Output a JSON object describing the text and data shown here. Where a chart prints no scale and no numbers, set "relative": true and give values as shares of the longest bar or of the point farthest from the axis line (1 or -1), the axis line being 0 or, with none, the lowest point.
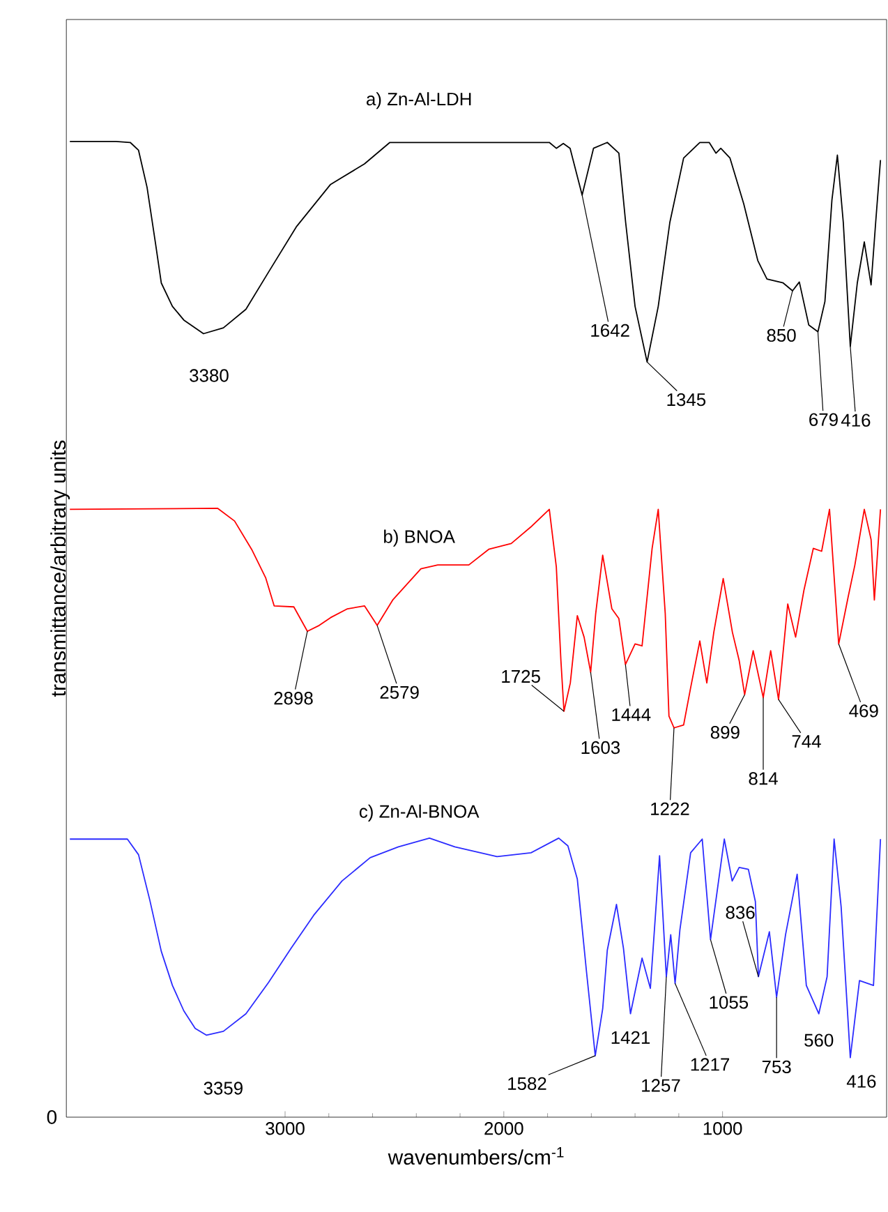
{
  "chart_data": {
    "type": "line",
    "xlabel": "wavenumbers/cm$^{-1}$",
    "ylabel": "transmittance/arbitrary units",
    "relative": true,
    "xlim": [
      4000,
      250
    ],
    "xticks": [
      3000,
      2000,
      1000
    ],
    "series": [
      {
        "name": "a) Zn-Al-LDH",
        "color": "#000000",
        "x": [
          3984,
          3773,
          3708,
          3670,
          3631,
          3592,
          3566,
          3515,
          3463,
          3373,
          3282,
          3179,
          3076,
          2947,
          2792,
          2637,
          2521,
          2018,
          1876,
          1792,
          1760,
          1728,
          1697,
          1642,
          1590,
          1527,
          1474,
          1443,
          1400,
          1345,
          1294,
          1241,
          1178,
          1104,
          1061,
          1030,
          1008,
          966,
          903,
          839,
          797,
          723,
          680,
          649,
          606,
          564,
          532,
          500,
          475,
          448,
          416,
          384,
          352,
          321,
          300,
          278
        ],
        "values": [
          1.0,
          1.0,
          0.999,
          0.991,
          0.953,
          0.895,
          0.855,
          0.831,
          0.817,
          0.803,
          0.809,
          0.828,
          0.866,
          0.913,
          0.956,
          0.977,
          0.999,
          0.999,
          0.999,
          0.999,
          0.993,
          0.998,
          0.993,
          0.945,
          0.993,
          0.999,
          0.988,
          0.917,
          0.831,
          0.774,
          0.831,
          0.917,
          0.983,
          0.999,
          0.999,
          0.988,
          0.993,
          0.983,
          0.936,
          0.878,
          0.859,
          0.855,
          0.847,
          0.856,
          0.812,
          0.805,
          0.836,
          0.94,
          0.986,
          0.917,
          0.79,
          0.855,
          0.897,
          0.853,
          0.917,
          0.981
        ]
      },
      {
        "name": "b) BNOA",
        "color": "#ff0000",
        "x": [
          3984,
          3308,
          3231,
          3153,
          3089,
          3050,
          2960,
          2898,
          2844,
          2792,
          2715,
          2637,
          2579,
          2508,
          2379,
          2302,
          2160,
          2069,
          1966,
          1876,
          1792,
          1760,
          1739,
          1725,
          1696,
          1664,
          1633,
          1603,
          1580,
          1548,
          1506,
          1474,
          1444,
          1400,
          1368,
          1322,
          1294,
          1262,
          1245,
          1222,
          1178,
          1146,
          1104,
          1072,
          1040,
          997,
          955,
          924,
          899,
          860,
          814,
          780,
          744,
          702,
          666,
          628,
          585,
          547,
          511,
          469,
          426,
          395,
          352,
          321,
          306,
          278
        ],
        "values": [
          0.623,
          0.624,
          0.611,
          0.582,
          0.553,
          0.524,
          0.523,
          0.498,
          0.504,
          0.512,
          0.521,
          0.524,
          0.504,
          0.53,
          0.562,
          0.566,
          0.566,
          0.582,
          0.588,
          0.605,
          0.623,
          0.564,
          0.468,
          0.416,
          0.445,
          0.514,
          0.492,
          0.456,
          0.516,
          0.576,
          0.521,
          0.511,
          0.464,
          0.485,
          0.483,
          0.583,
          0.623,
          0.516,
          0.411,
          0.399,
          0.402,
          0.44,
          0.488,
          0.445,
          0.497,
          0.552,
          0.497,
          0.468,
          0.433,
          0.478,
          0.43,
          0.478,
          0.428,
          0.526,
          0.492,
          0.54,
          0.583,
          0.58,
          0.623,
          0.485,
          0.533,
          0.566,
          0.623,
          0.592,
          0.53,
          0.623
        ]
      },
      {
        "name": "c) Zn-Al-BNOA",
        "color": "#2b2bff",
        "x": [
          3984,
          3721,
          3670,
          3618,
          3566,
          3515,
          3463,
          3411,
          3359,
          3282,
          3179,
          3076,
          2973,
          2869,
          2740,
          2611,
          2482,
          2340,
          2224,
          2031,
          1876,
          1749,
          1707,
          1664,
          1622,
          1582,
          1548,
          1527,
          1485,
          1453,
          1421,
          1368,
          1330,
          1288,
          1257,
          1237,
          1217,
          1195,
          1146,
          1093,
          1055,
          992,
          956,
          924,
          882,
          850,
          836,
          786,
          753,
          712,
          659,
          617,
          560,
          522,
          490,
          458,
          416,
          374,
          310,
          278
        ],
        "values": [
          0.285,
          0.285,
          0.269,
          0.222,
          0.17,
          0.135,
          0.109,
          0.091,
          0.084,
          0.088,
          0.106,
          0.138,
          0.173,
          0.207,
          0.242,
          0.266,
          0.277,
          0.286,
          0.277,
          0.267,
          0.271,
          0.286,
          0.278,
          0.244,
          0.149,
          0.063,
          0.111,
          0.171,
          0.218,
          0.173,
          0.106,
          0.163,
          0.132,
          0.268,
          0.144,
          0.187,
          0.137,
          0.192,
          0.271,
          0.285,
          0.182,
          0.285,
          0.242,
          0.256,
          0.254,
          0.221,
          0.144,
          0.19,
          0.123,
          0.187,
          0.249,
          0.135,
          0.106,
          0.144,
          0.285,
          0.216,
          0.061,
          0.14,
          0.135,
          0.285
        ]
      }
    ],
    "annotations": [
      {
        "text": "3380",
        "x": 3373,
        "y": 0.803
      },
      {
        "text": "1642",
        "x": 1642,
        "y": 0.945
      },
      {
        "text": "1345",
        "x": 1345,
        "y": 0.774
      },
      {
        "text": "850",
        "x": 680,
        "y": 0.847
      },
      {
        "text": "679",
        "x": 564,
        "y": 0.805
      },
      {
        "text": "416",
        "x": 416,
        "y": 0.79
      },
      {
        "text": "2898",
        "x": 2898,
        "y": 0.498
      },
      {
        "text": "2579",
        "x": 2579,
        "y": 0.504
      },
      {
        "text": "1725",
        "x": 1725,
        "y": 0.416
      },
      {
        "text": "1603",
        "x": 1603,
        "y": 0.456
      },
      {
        "text": "1444",
        "x": 1444,
        "y": 0.464
      },
      {
        "text": "1222",
        "x": 1222,
        "y": 0.399
      },
      {
        "text": "899",
        "x": 899,
        "y": 0.433
      },
      {
        "text": "814",
        "x": 814,
        "y": 0.43
      },
      {
        "text": "744",
        "x": 744,
        "y": 0.428
      },
      {
        "text": "469",
        "x": 469,
        "y": 0.485
      },
      {
        "text": "3359",
        "x": 3359,
        "y": 0.084
      },
      {
        "text": "1582",
        "x": 1582,
        "y": 0.063
      },
      {
        "text": "1421",
        "x": 1421,
        "y": 0.106
      },
      {
        "text": "1257",
        "x": 1257,
        "y": 0.144
      },
      {
        "text": "1217",
        "x": 1217,
        "y": 0.137
      },
      {
        "text": "1055",
        "x": 1055,
        "y": 0.182
      },
      {
        "text": "836",
        "x": 836,
        "y": 0.144
      },
      {
        "text": "753",
        "x": 753,
        "y": 0.123
      },
      {
        "text": "560",
        "x": 560,
        "y": 0.106
      },
      {
        "text": "416",
        "x": 416,
        "y": 0.061
      },
      "0"
    ]
  }
}
